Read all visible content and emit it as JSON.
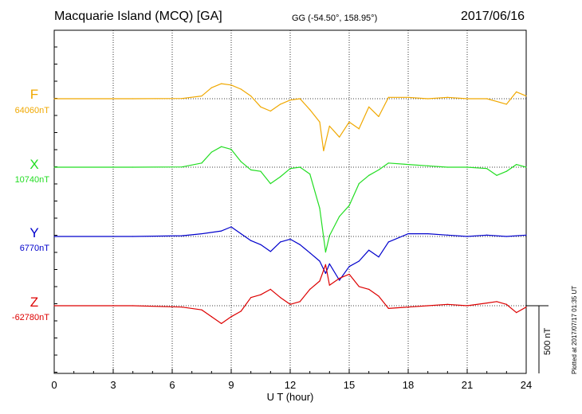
{
  "header": {
    "title": "Macquarie Island (MCQ)  [GA]",
    "coords": "GG (-54.50°, 158.95°)",
    "date": "2017/06/16"
  },
  "footer": {
    "plotted": "Plotted at 2017/07/17 01:35 UT",
    "scale_label": "500 nT"
  },
  "colors": {
    "F": "#f0a800",
    "X": "#22dd22",
    "Y": "#0000cc",
    "Z": "#dd0000"
  },
  "chart_data": {
    "type": "line",
    "xlabel": "U T (hour)",
    "xlim": [
      0,
      24
    ],
    "xticks": [
      "0",
      "3",
      "6",
      "9",
      "12",
      "15",
      "18",
      "21",
      "24"
    ],
    "scale_nT": 500,
    "series": [
      {
        "name": "F",
        "baseline_label": "64060nT",
        "x": [
          0,
          4,
          6.5,
          7.5,
          8,
          8.5,
          9,
          9.5,
          10,
          10.5,
          11,
          11.5,
          12,
          12.5,
          13,
          13.5,
          13.7,
          14,
          14.5,
          15,
          15.5,
          16,
          16.5,
          17,
          18,
          19,
          20,
          21,
          22,
          22.5,
          23,
          23.5,
          24
        ],
        "y": [
          0,
          0,
          2,
          20,
          80,
          110,
          100,
          70,
          20,
          -60,
          -90,
          -40,
          -10,
          0,
          -80,
          -170,
          -380,
          -200,
          -280,
          -170,
          -220,
          -60,
          -130,
          10,
          10,
          0,
          10,
          0,
          0,
          -20,
          -40,
          50,
          20
        ]
      },
      {
        "name": "X",
        "baseline_label": "10740nT",
        "x": [
          0,
          4,
          6.5,
          7.5,
          8,
          8.5,
          9,
          9.5,
          10,
          10.5,
          11,
          11.5,
          12,
          12.5,
          13,
          13.5,
          13.8,
          14,
          14.5,
          15,
          15.5,
          16,
          16.5,
          17,
          18,
          19,
          20,
          21,
          22,
          22.5,
          23,
          23.5,
          24
        ],
        "y": [
          0,
          0,
          2,
          30,
          110,
          150,
          130,
          40,
          -20,
          -30,
          -120,
          -70,
          -10,
          0,
          -50,
          -300,
          -620,
          -500,
          -360,
          -280,
          -120,
          -60,
          -20,
          30,
          20,
          10,
          0,
          0,
          -10,
          -60,
          -30,
          20,
          0
        ]
      },
      {
        "name": "Y",
        "baseline_label": "6770nT",
        "x": [
          0,
          4,
          6.5,
          7.5,
          8.5,
          9,
          9.5,
          10,
          10.5,
          11,
          11.5,
          12,
          12.5,
          13,
          13.5,
          13.8,
          14,
          14.5,
          15,
          15.5,
          16,
          16.5,
          17,
          18,
          19,
          20,
          21,
          22,
          23,
          24
        ],
        "y": [
          0,
          0,
          5,
          20,
          40,
          70,
          20,
          -30,
          -60,
          -110,
          -40,
          -20,
          -60,
          -120,
          -180,
          -270,
          -200,
          -320,
          -220,
          -180,
          -100,
          -150,
          -40,
          20,
          20,
          10,
          0,
          10,
          0,
          10
        ]
      },
      {
        "name": "Z",
        "baseline_label": "-62780nT",
        "x": [
          0,
          4,
          6.5,
          7.5,
          8,
          8.5,
          9,
          9.5,
          10,
          10.5,
          11,
          11.5,
          12,
          12.5,
          13,
          13.5,
          13.8,
          14,
          14.5,
          15,
          15.5,
          16,
          16.5,
          17,
          18,
          19,
          20,
          21,
          22,
          22.5,
          23,
          23.5,
          24
        ],
        "y": [
          0,
          0,
          -10,
          -30,
          -80,
          -130,
          -80,
          -40,
          60,
          80,
          120,
          60,
          10,
          30,
          120,
          180,
          300,
          150,
          200,
          230,
          140,
          120,
          70,
          -20,
          -10,
          0,
          10,
          0,
          20,
          30,
          10,
          -50,
          -10
        ]
      }
    ]
  }
}
